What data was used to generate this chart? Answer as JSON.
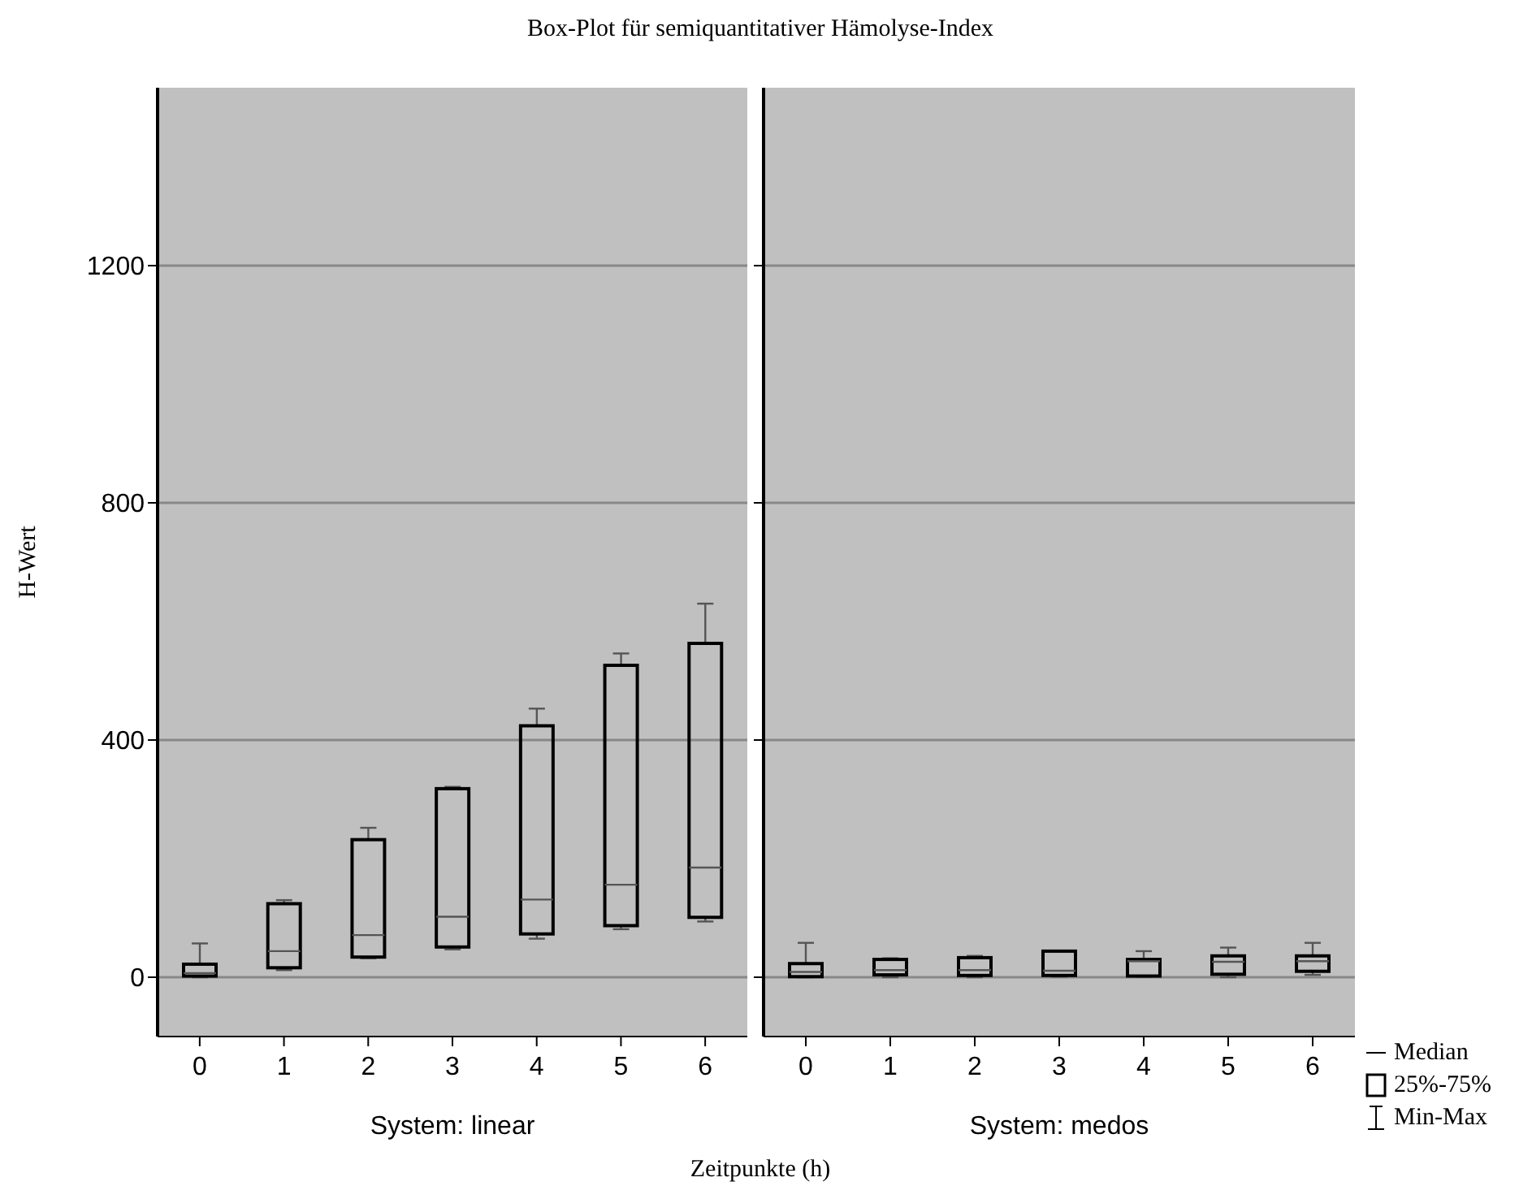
{
  "chart_data": [
    {
      "type": "box",
      "title": "Box-Plot für semiquantitativer Hämolyse-Index",
      "ylabel": "H-Wert",
      "xlabel": "System: linear",
      "annotations": [
        "Zeitpunkte (h)"
      ],
      "categories": [
        "0",
        "1",
        "2",
        "3",
        "4",
        "5",
        "6"
      ],
      "color": "#000000",
      "ylim": [
        -100,
        1500
      ],
      "yticks": [
        0,
        400,
        800,
        1200
      ],
      "grid": "y",
      "boxes": [
        {
          "low": 0,
          "q1": 2,
          "median": 7,
          "q3": 22,
          "high": 57
        },
        {
          "low": 12,
          "q1": 16,
          "median": 44,
          "q3": 124,
          "high": 130
        },
        {
          "low": 32,
          "q1": 34,
          "median": 71,
          "q3": 232,
          "high": 252
        },
        {
          "low": 47,
          "q1": 51,
          "median": 102,
          "q3": 318,
          "high": 321
        },
        {
          "low": 65,
          "q1": 73,
          "median": 131,
          "q3": 424,
          "high": 453
        },
        {
          "low": 81,
          "q1": 87,
          "median": 156,
          "q3": 526,
          "high": 546
        },
        {
          "low": 94,
          "q1": 101,
          "median": 185,
          "q3": 563,
          "high": 630
        }
      ]
    },
    {
      "type": "box",
      "xlabel": "System: medos",
      "annotations": [
        "Median",
        "25%-75%",
        "Min-Max"
      ],
      "categories": [
        "0",
        "1",
        "2",
        "3",
        "4",
        "5",
        "6"
      ],
      "color": "#000000",
      "ylim": [
        -100,
        1500
      ],
      "yticks": [
        0,
        400,
        800,
        1200
      ],
      "grid": "y",
      "tick_labels": "x",
      "boxes": [
        {
          "low": 0,
          "q1": 1,
          "median": 9,
          "q3": 23,
          "high": 58
        },
        {
          "low": 0,
          "q1": 4,
          "median": 12,
          "q3": 30,
          "high": 32
        },
        {
          "low": 0,
          "q1": 3,
          "median": 12,
          "q3": 33,
          "high": 36
        },
        {
          "low": 1,
          "q1": 3,
          "median": 11,
          "q3": 44,
          "high": 44
        },
        {
          "low": 1,
          "q1": 2,
          "median": 27,
          "q3": 30,
          "high": 44
        },
        {
          "low": 0,
          "q1": 5,
          "median": 26,
          "q3": 36,
          "high": 50
        },
        {
          "low": 4,
          "q1": 10,
          "median": 27,
          "q3": 36,
          "high": 58
        }
      ]
    }
  ]
}
